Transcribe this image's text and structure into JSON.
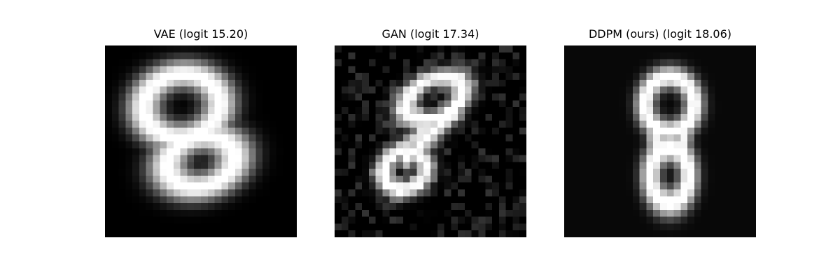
{
  "panels": [
    {
      "title": "VAE (logit 15.20)",
      "style": "blurry",
      "digit": "8"
    },
    {
      "title": "GAN (logit 17.34)",
      "style": "noisy",
      "digit": "8"
    },
    {
      "title": "DDPM (ours) (logit 18.06)",
      "style": "clean",
      "digit": "8"
    }
  ],
  "image_grid": {
    "rows": 28,
    "cols": 28,
    "colormap": "gray"
  }
}
